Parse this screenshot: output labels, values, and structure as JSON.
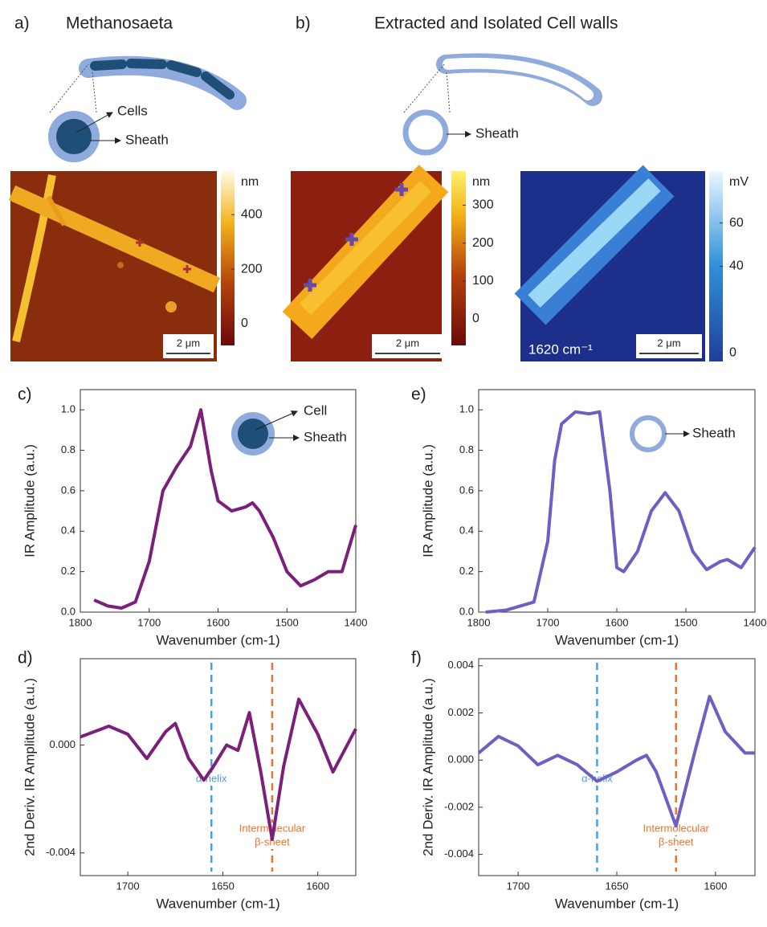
{
  "figure": {
    "panel_a": "a)",
    "title_a": "Methanosaeta",
    "diagram_a": [
      "Cells",
      "Sheath"
    ],
    "panel_b": "b)",
    "title_b": "Extracted and Isolated Cell walls",
    "diagram_b": [
      "Sheath"
    ],
    "images": [
      {
        "unit": "nm",
        "range": [
          -80,
          560
        ],
        "ticks": [
          400,
          200,
          0
        ],
        "scale_bar": "2 μm"
      },
      {
        "unit": "nm",
        "range": [
          -70,
          390
        ],
        "ticks": [
          300,
          200,
          100,
          0
        ],
        "scale_bar": "2 μm"
      },
      {
        "unit": "mV",
        "range": [
          -4,
          84
        ],
        "ticks": [
          60,
          40,
          0
        ],
        "scale_bar": "2 μm",
        "label": "1620 cm⁻¹"
      }
    ]
  },
  "chart_data": [
    {
      "type": "line",
      "panel": "c)",
      "x_label": "Wavenumber (cm-1)",
      "y_label": "IR Amplitude (a.u.)",
      "inset_labels": [
        "Cell",
        "Sheath"
      ],
      "xlim": [
        1800,
        1400
      ],
      "xticks": [
        1800,
        1700,
        1600,
        1500,
        1400
      ],
      "ylim": [
        0,
        1.1
      ],
      "yticks": [
        {
          "value": 0,
          "label": "0.0"
        },
        {
          "value": 0.2,
          "label": "0.2"
        },
        {
          "value": 0.4,
          "label": "0.4"
        },
        {
          "value": 0.6,
          "label": "0.6"
        },
        {
          "value": 0.8,
          "label": "0.8"
        },
        {
          "value": 1,
          "label": "1.0"
        }
      ],
      "x": [
        1780,
        1760,
        1740,
        1720,
        1700,
        1680,
        1660,
        1640,
        1625,
        1610,
        1600,
        1580,
        1560,
        1550,
        1540,
        1520,
        1500,
        1480,
        1460,
        1440,
        1420,
        1400
      ],
      "series": [
        {
          "color": "#7b1f7a",
          "values": [
            0.06,
            0.03,
            0.02,
            0.05,
            0.25,
            0.6,
            0.72,
            0.82,
            1.0,
            0.7,
            0.55,
            0.5,
            0.52,
            0.54,
            0.5,
            0.37,
            0.2,
            0.13,
            0.16,
            0.2,
            0.2,
            0.43
          ]
        }
      ]
    },
    {
      "type": "line",
      "panel": "e)",
      "x_label": "Wavenumber (cm-1)",
      "y_label": "IR Amplitude (a.u.)",
      "inset_labels": [
        "Sheath"
      ],
      "xlim": [
        1800,
        1400
      ],
      "xticks": [
        1800,
        1700,
        1600,
        1500,
        1400
      ],
      "ylim": [
        0,
        1.1
      ],
      "yticks": [
        {
          "value": 0,
          "label": "0.0"
        },
        {
          "value": 0.2,
          "label": "0.2"
        },
        {
          "value": 0.4,
          "label": "0.4"
        },
        {
          "value": 0.6,
          "label": "0.6"
        },
        {
          "value": 0.8,
          "label": "0.8"
        },
        {
          "value": 1,
          "label": "1.0"
        }
      ],
      "x": [
        1790,
        1760,
        1720,
        1700,
        1690,
        1680,
        1660,
        1640,
        1625,
        1610,
        1600,
        1590,
        1570,
        1550,
        1530,
        1510,
        1490,
        1470,
        1450,
        1440,
        1420,
        1400
      ],
      "series": [
        {
          "color": "#6f5fc4",
          "values": [
            0.0,
            0.01,
            0.05,
            0.35,
            0.75,
            0.93,
            0.99,
            0.98,
            0.99,
            0.6,
            0.22,
            0.2,
            0.3,
            0.5,
            0.59,
            0.5,
            0.3,
            0.21,
            0.25,
            0.26,
            0.22,
            0.32
          ]
        }
      ]
    },
    {
      "type": "line",
      "panel": "d)",
      "x_label": "Wavenumber (cm-1)",
      "y_label": "2nd Deriv. IR Amplitude (a.u.)",
      "xlim": [
        1725,
        1580
      ],
      "xticks": [
        1700,
        1650,
        1600
      ],
      "ylim": [
        -0.00484,
        0.0032
      ],
      "yticks": [
        {
          "value": 0,
          "label": "0.000"
        },
        {
          "value": -0.004,
          "label": "-0.004"
        }
      ],
      "markers": [
        {
          "x": 1656,
          "color": "#4a9fe0",
          "label_lines": [
            "α-helix"
          ]
        },
        {
          "x": 1624,
          "color": "#e8742c",
          "label_lines": [
            "Intermolecular",
            "β-sheet"
          ]
        }
      ],
      "x": [
        1725,
        1710,
        1700,
        1690,
        1680,
        1675,
        1668,
        1660,
        1655,
        1648,
        1642,
        1636,
        1630,
        1624,
        1618,
        1610,
        1600,
        1592,
        1580
      ],
      "series": [
        {
          "color": "#7b1f7a",
          "values": [
            0.0003,
            0.0007,
            0.0004,
            -0.0005,
            0.0005,
            0.0008,
            -0.0005,
            -0.0013,
            -0.0008,
            0.0,
            -0.0002,
            0.0012,
            -0.001,
            -0.0035,
            -0.0008,
            0.0017,
            0.0004,
            -0.001,
            0.0006
          ]
        }
      ]
    },
    {
      "type": "line",
      "panel": "f)",
      "x_label": "Wavenumber (cm-1)",
      "y_label": "2nd Deriv. IR Amplitude (a.u.)",
      "xlim": [
        1720,
        1580
      ],
      "xticks": [
        1700,
        1650,
        1600
      ],
      "ylim": [
        -0.0049,
        0.0043
      ],
      "yticks": [
        {
          "value": 0.004,
          "label": "0.004"
        },
        {
          "value": 0.002,
          "label": "0.002"
        },
        {
          "value": 0,
          "label": "0.000"
        },
        {
          "value": -0.002,
          "label": "-0.002"
        },
        {
          "value": -0.004,
          "label": "-0.004"
        }
      ],
      "markers": [
        {
          "x": 1660,
          "color": "#4a9fe0",
          "label_lines": [
            "α-helix"
          ]
        },
        {
          "x": 1620,
          "color": "#e8742c",
          "label_lines": [
            "Intermolecular",
            "β-sheet"
          ]
        }
      ],
      "x": [
        1720,
        1710,
        1700,
        1690,
        1680,
        1670,
        1660,
        1650,
        1640,
        1635,
        1630,
        1620,
        1610,
        1603,
        1595,
        1585,
        1580
      ],
      "series": [
        {
          "color": "#6f5fc4",
          "values": [
            0.0003,
            0.001,
            0.0006,
            -0.0002,
            0.0002,
            -0.0002,
            -0.0009,
            -0.0005,
            0.0,
            0.0002,
            -0.0005,
            -0.0028,
            0.0005,
            0.0027,
            0.0012,
            0.0003,
            0.0003
          ]
        }
      ]
    }
  ]
}
